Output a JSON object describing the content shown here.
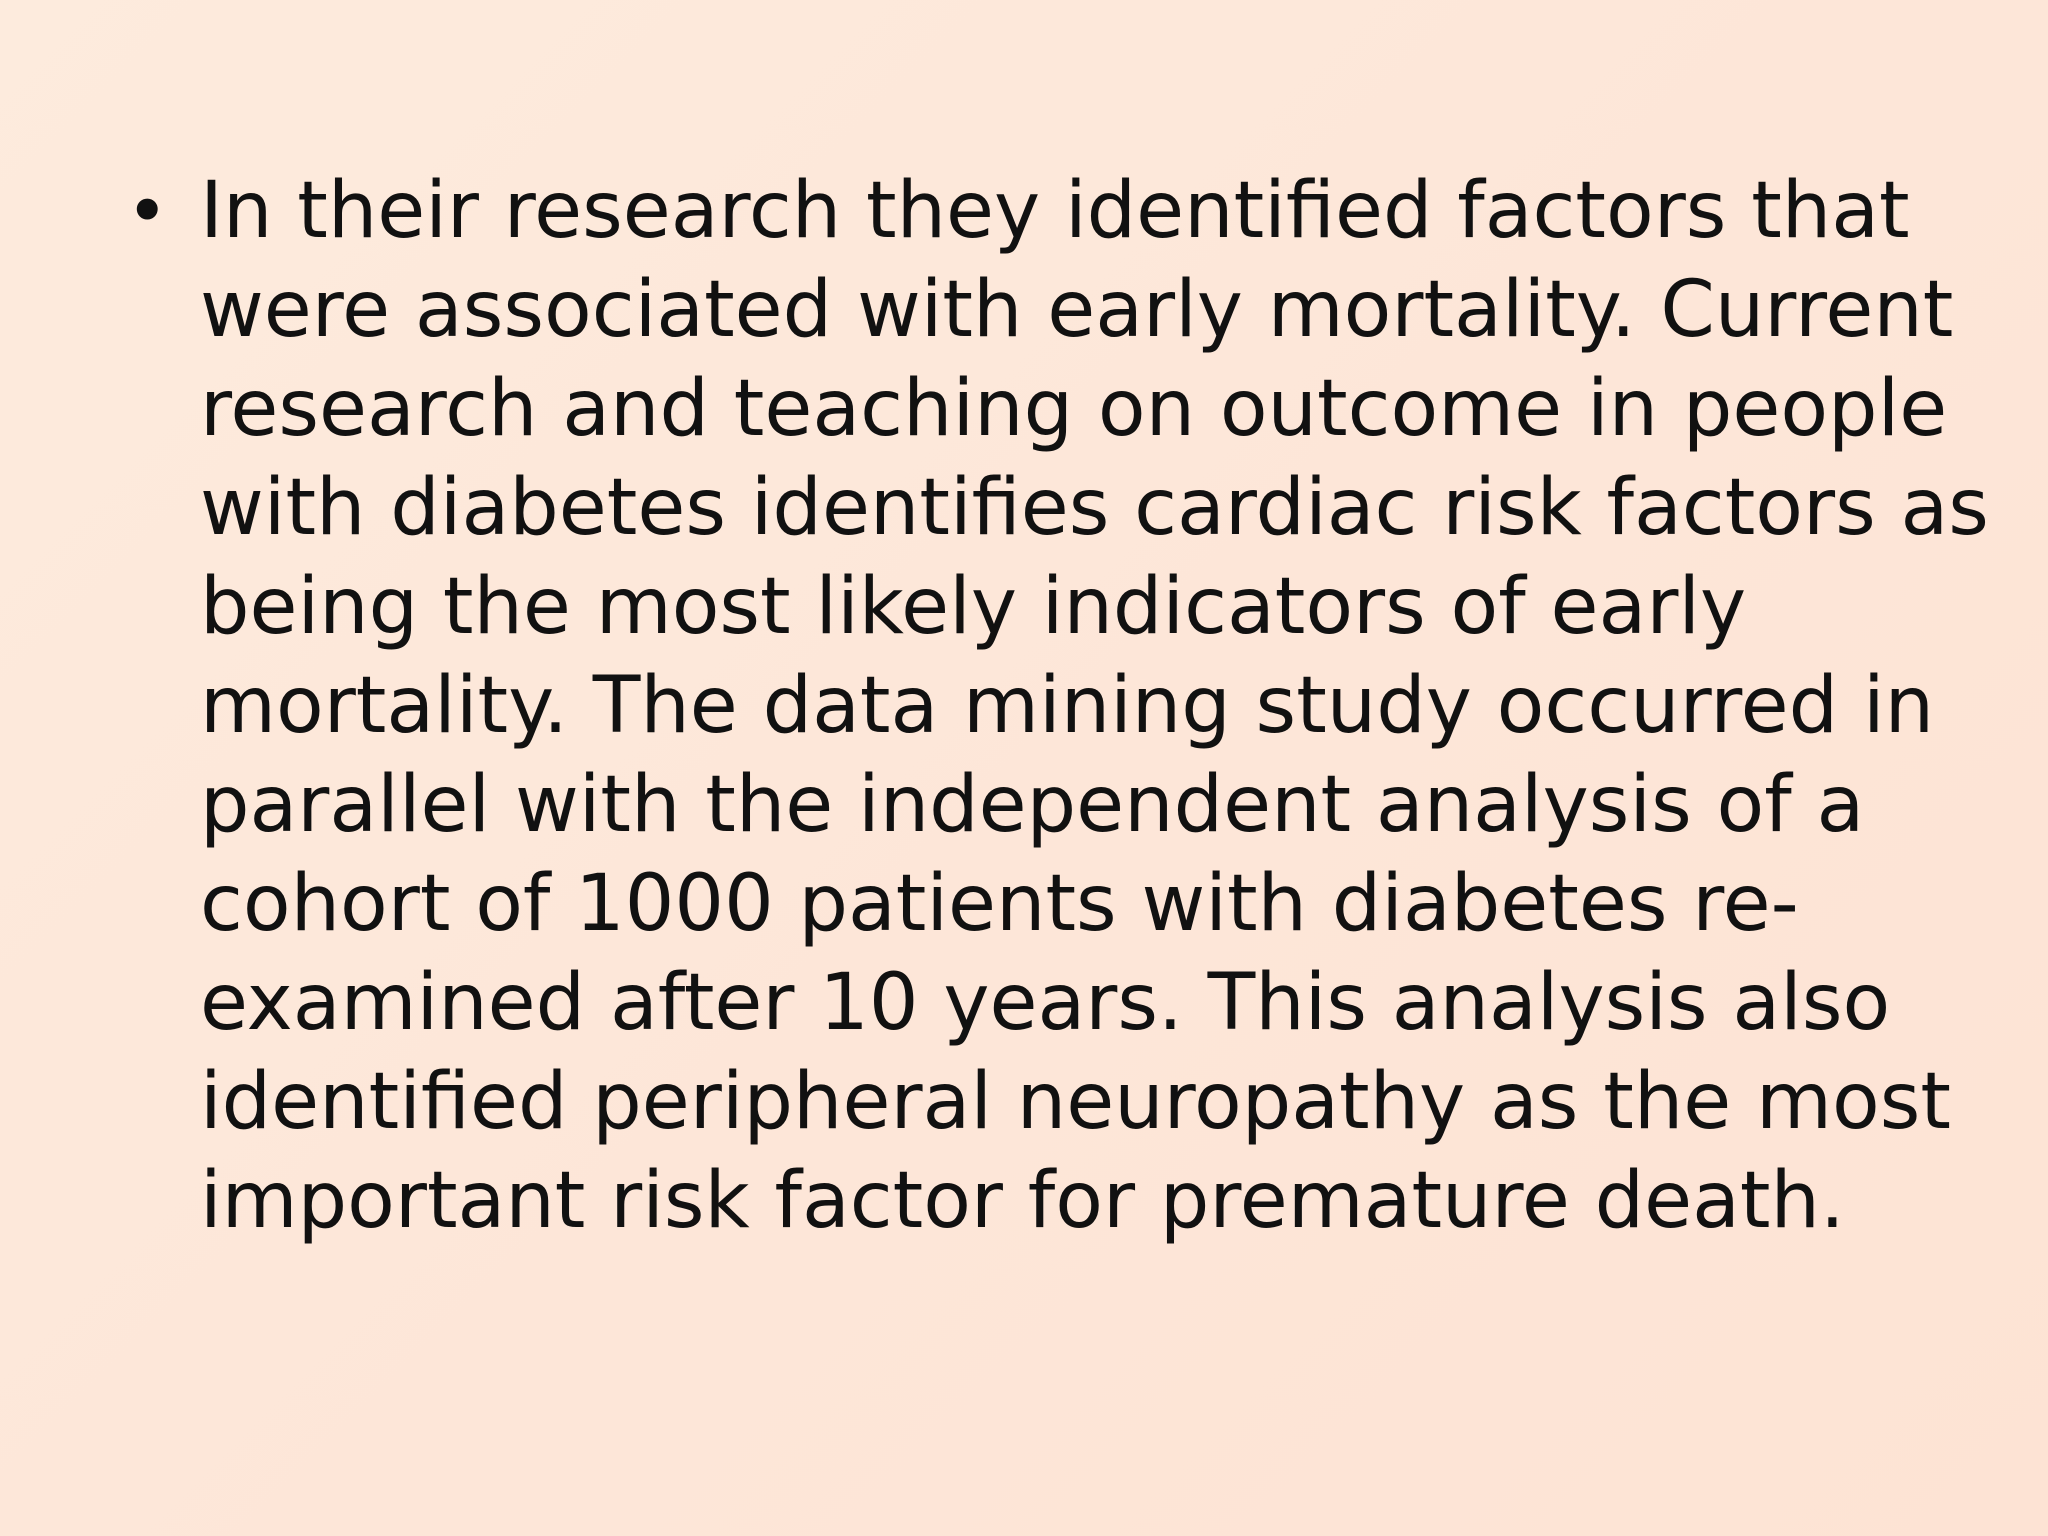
{
  "slide": {
    "bullets": [
      {
        "marker": "•",
        "lines": [
          "In their research they identified factors that",
          "were associated with early mortality. Current",
          "research and teaching on outcome in people",
          "with diabetes identifies cardiac risk factors as",
          "being the most likely indicators of early",
          "mortality. The data mining study occurred in",
          "parallel with the independent analysis of a",
          "cohort of 1000 patients with diabetes re-",
          "examined after 10 years. This analysis also",
          "identified peripheral neuropathy as the most",
          "important risk factor for premature death."
        ]
      }
    ]
  },
  "colors": {
    "background": "#fde8da",
    "text": "#111111"
  }
}
